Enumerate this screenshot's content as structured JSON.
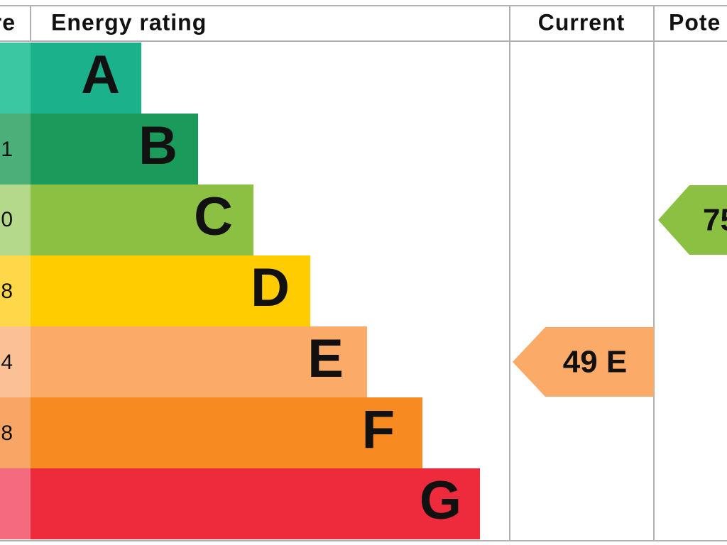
{
  "header": {
    "score": "re",
    "rating": "Energy rating",
    "current": "Current",
    "potential": "Pote"
  },
  "rows": [
    {
      "letter": "A",
      "score": null
    },
    {
      "letter": "B",
      "score": "1"
    },
    {
      "letter": "C",
      "score": "0"
    },
    {
      "letter": "D",
      "score": "8"
    },
    {
      "letter": "E",
      "score": "4"
    },
    {
      "letter": "F",
      "score": "8"
    },
    {
      "letter": "G",
      "score": null
    }
  ],
  "current": "49 E",
  "potential": "75"
}
